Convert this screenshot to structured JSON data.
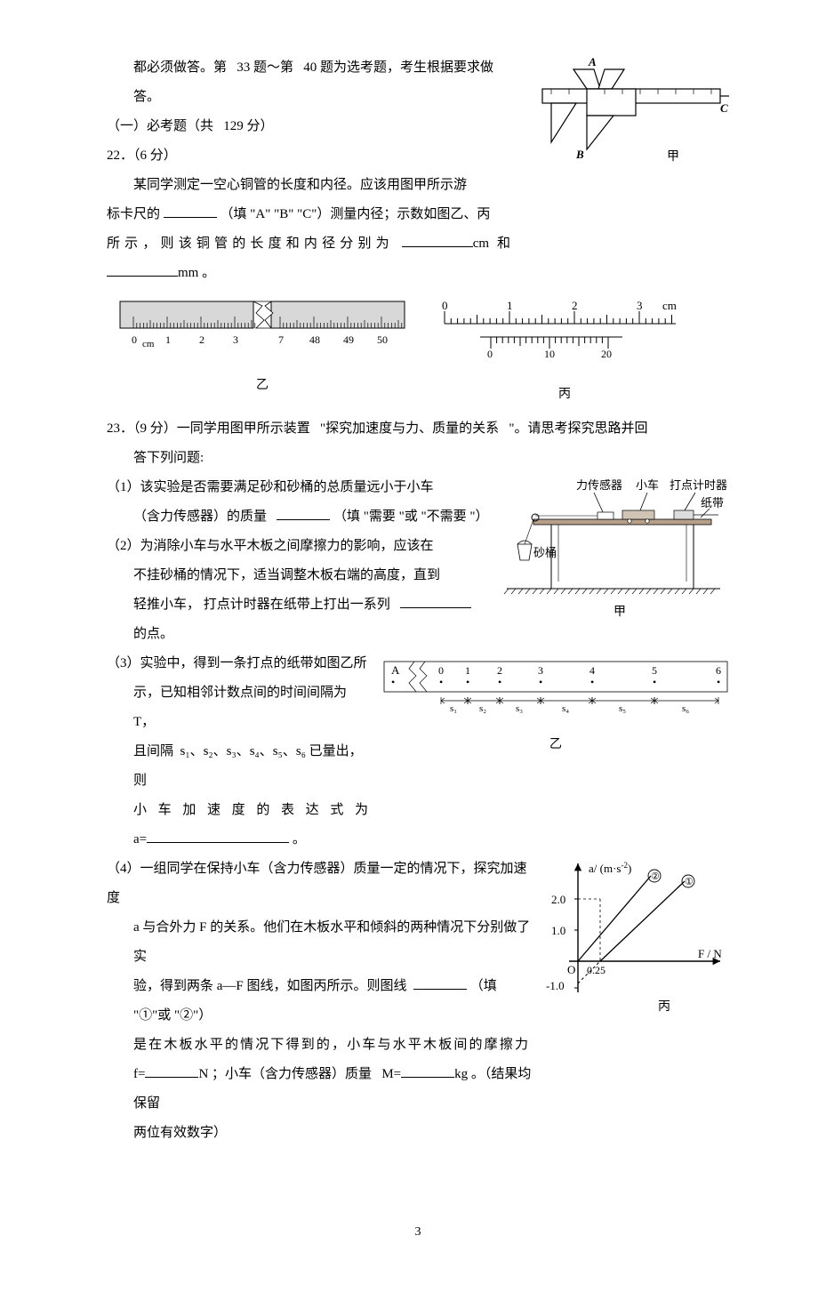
{
  "top": {
    "continuation": "都必须做答。第",
    "q_start": "33",
    "mid1": "题～第",
    "q_end": "40",
    "tail": "题为选考题，考生根据要求做答。"
  },
  "section1": {
    "label": "（一）必考题（共",
    "points": "129",
    "unit": "分）"
  },
  "q22": {
    "num": "22",
    "pts": "．（6 分）",
    "body1": "某同学测定一空心铜管的长度和内径。应该用图甲所示游",
    "body2_a": "标卡尺的",
    "body2_b": "（填 \"A\" \"B\" \"C\"）测量内径；示数如图乙、丙",
    "body3": "所示，则该铜管的长度和内径分别为",
    "unit_cm": "cm  和",
    "unit_mm": "mm 。",
    "caliper_caption": "甲",
    "ruler_yi_caption": "乙",
    "vernier_bing_caption": "丙",
    "ruler_yi": {
      "ticks_left": [
        "0",
        "1",
        "2",
        "3"
      ],
      "ticks_right": [
        "7",
        "48",
        "49",
        "50"
      ],
      "unit": "cm"
    },
    "vernier_bing": {
      "main_ticks": [
        "0",
        "1",
        "2",
        "3"
      ],
      "main_unit": "cm",
      "sub_ticks": [
        "0",
        "10",
        "20"
      ]
    },
    "caliper_letters": [
      "A",
      "B",
      "C"
    ]
  },
  "q23": {
    "num": "23",
    "pts": "．（9 分）一同学用图甲所示装置",
    "quote": "\"探究加速度与力、质量的关系",
    "tail": "\"。请思考探究思路并回",
    "line2": "答下列问题:",
    "p1a": "（1）该实验是否需要满足砂和砂桶的总质量远小于小车",
    "p1b_a": "（含力传感器）的质量",
    "p1b_b": "（填 \"需要 \"或 \"不需要 \"）",
    "p2a": "（2）为消除小车与水平木板之间摩擦力的影响，应该在",
    "p2b": "不挂砂桶的情况下，适当调整木板右端的高度，直到",
    "p2c": "轻推小车， 打点计时器在纸带上打出一系列",
    "p2d": "的点。",
    "p3a": "（3）实验中，得到一条打点的纸带如图乙所",
    "p3b_a": "示，已知相邻计数点间的时间间隔为",
    "p3b_T": "T，",
    "p3c_a": "且间隔",
    "p3c_list": "s₁、s₂、s₃、s₄、s₅、s₆",
    "p3c_b": "已量出，则",
    "p3d": "小 车 加 速 度 的 表 达 式 为",
    "p3e": "a=",
    "p3e_end": "。",
    "p4a": "（4）一组同学在保持小车（含力传感器）质量一定的情况下，探究加速度",
    "p4b": "a 与合外力  F 的关系。他们在木板水平和倾斜的两种情况下分别做了实",
    "p4c_a": "验，得到两条  a—F 图线，如图丙所示。则图线",
    "p4c_b": "（填 \"①\"或 \"②\"）",
    "p4d": "是在木板水平的情况下得到的，小车与水平木板间的摩擦力",
    "p4e_a": "f=",
    "p4e_unitN": "N ；小车（含力传感器）质量",
    "p4e_M": "M=",
    "p4e_unitkg": "kg 。（结果均保留",
    "p4f": "两位有效数字）",
    "setup_labels": {
      "sensor": "力传感器",
      "cart": "小车",
      "timer": "打点计时器",
      "tape": "纸带",
      "bucket": "砂桶",
      "caption": "甲"
    },
    "tape_fig": {
      "head": "A",
      "points": [
        "0",
        "1",
        "2",
        "3",
        "4",
        "5",
        "6"
      ],
      "spans": [
        "s₁",
        "s₂",
        "s₃",
        "s₄",
        "s₅",
        "s₆"
      ],
      "caption": "乙"
    },
    "graph": {
      "y_label": "a/ (m·s",
      "y_label_sup": "-2",
      "y_label_end": ")",
      "y_ticks": [
        "2.0",
        "1.0",
        "-1.0"
      ],
      "origin": "O",
      "x_tick": "0.25",
      "x_label": "F / N",
      "line_labels": [
        "②",
        "①"
      ],
      "caption": "丙",
      "colors": {
        "axis": "#000000",
        "line": "#000000",
        "dash": "#000000",
        "bg": "#ffffff"
      },
      "ylim": [
        -1.5,
        3.0
      ],
      "xlim": [
        -0.2,
        1.2
      ]
    }
  },
  "page_number": "3"
}
